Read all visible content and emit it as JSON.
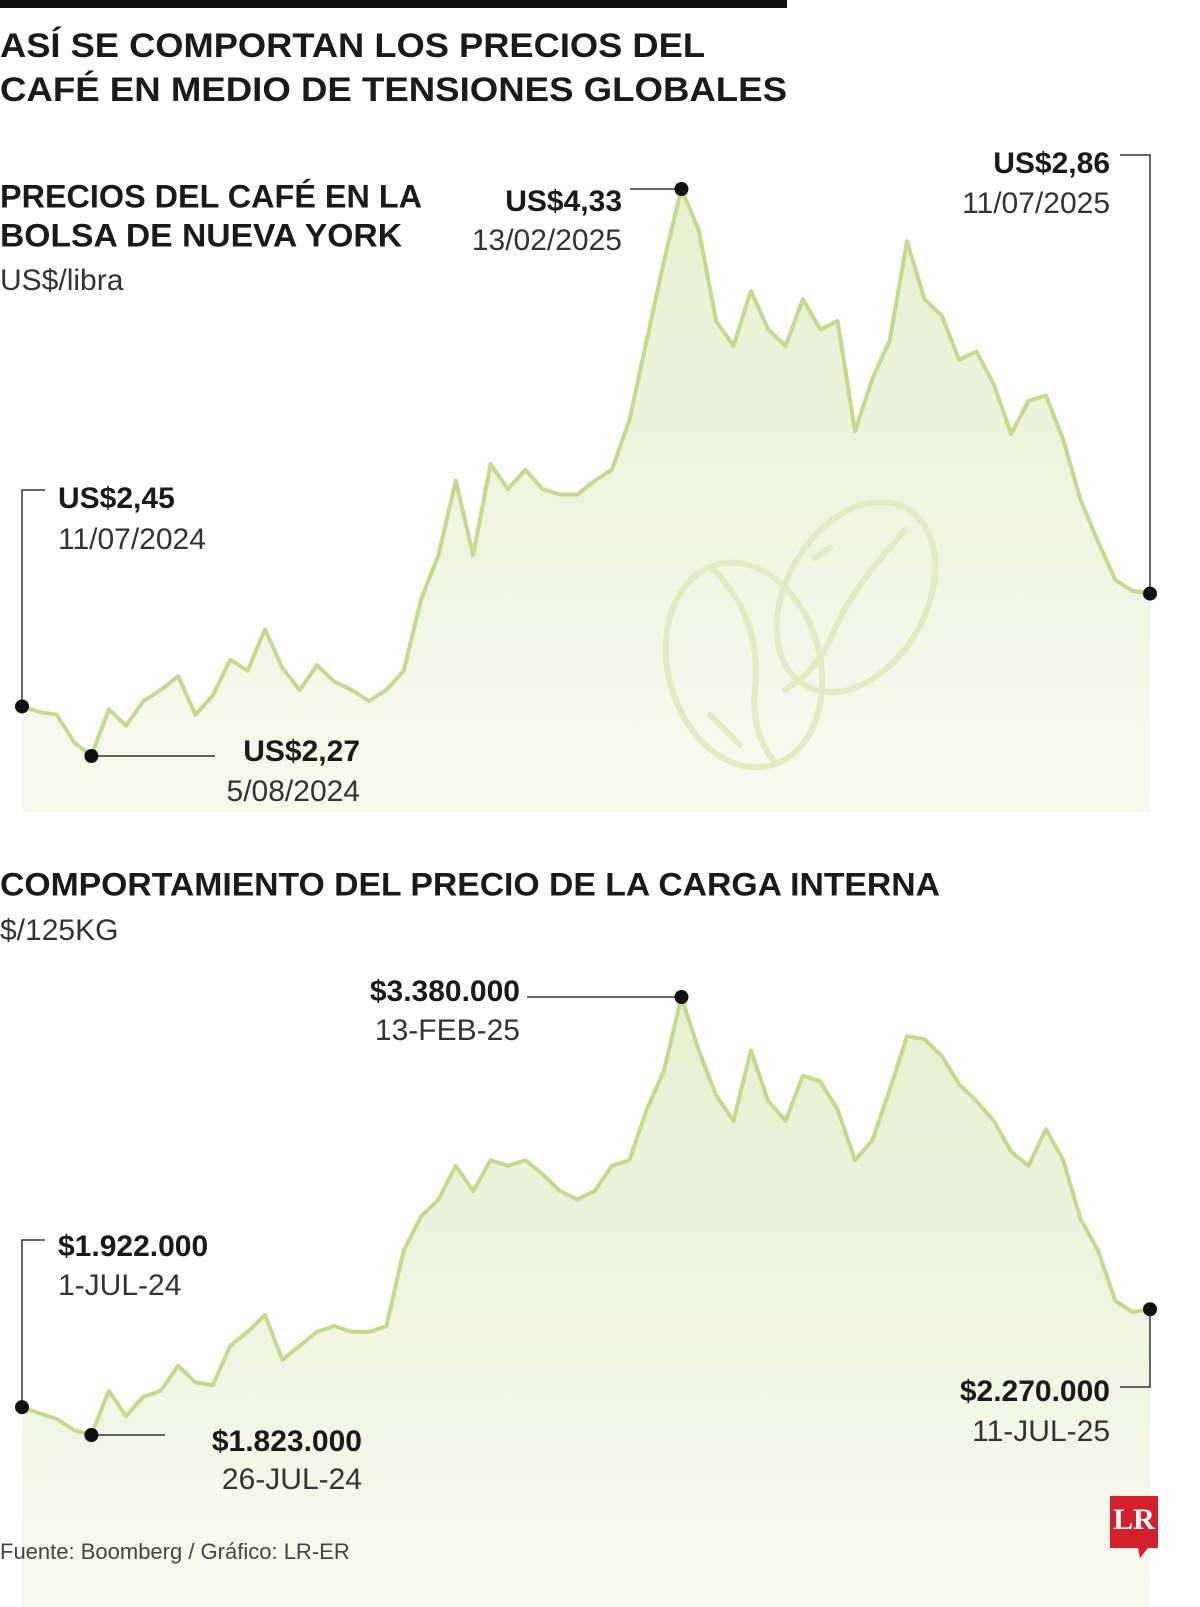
{
  "header": {
    "title": [
      "ASÍ SE COMPORTAN LOS PRECIOS DEL",
      "CAFÉ EN MEDIO DE TENSIONES GLOBALES"
    ]
  },
  "chart_data": [
    {
      "type": "line",
      "title": [
        "PRECIOS DEL CAFÉ EN LA",
        "BOLSA DE NUEVA YORK"
      ],
      "subtitle": "US$/libra",
      "color": "#c4d98c",
      "categories": [
        "11/07/2024",
        null,
        null,
        null,
        "5/08/2024",
        null,
        null,
        null,
        null,
        null,
        null,
        null,
        null,
        null,
        null,
        null,
        null,
        null,
        null,
        null,
        null,
        null,
        null,
        null,
        null,
        null,
        null,
        null,
        null,
        null,
        null,
        null,
        null,
        null,
        null,
        null,
        null,
        null,
        "13/02/2025",
        null,
        null,
        null,
        null,
        null,
        null,
        null,
        null,
        null,
        null,
        null,
        null,
        null,
        null,
        null,
        null,
        null,
        null,
        null,
        null,
        null,
        null,
        null,
        null,
        null,
        null,
        "11/07/2025"
      ],
      "values": [
        2.45,
        2.43,
        2.42,
        2.32,
        2.27,
        2.44,
        2.38,
        2.47,
        2.51,
        2.56,
        2.42,
        2.49,
        2.62,
        2.58,
        2.73,
        2.59,
        2.51,
        2.6,
        2.54,
        2.51,
        2.47,
        2.51,
        2.58,
        2.84,
        3.0,
        3.27,
        3.0,
        3.33,
        3.24,
        3.31,
        3.24,
        3.22,
        3.22,
        3.27,
        3.31,
        3.49,
        3.78,
        4.07,
        4.33,
        4.18,
        3.85,
        3.76,
        3.96,
        3.82,
        3.76,
        3.93,
        3.82,
        3.85,
        3.45,
        3.64,
        3.78,
        4.14,
        3.93,
        3.87,
        3.71,
        3.74,
        3.62,
        3.44,
        3.56,
        3.58,
        3.42,
        3.2,
        3.05,
        2.91,
        2.87,
        2.86
      ],
      "value_labels": [
        "US$2,45",
        null,
        null,
        null,
        "US$2,27",
        null,
        null,
        null,
        null,
        null,
        null,
        null,
        null,
        null,
        null,
        null,
        null,
        null,
        null,
        null,
        null,
        null,
        null,
        null,
        null,
        null,
        null,
        null,
        null,
        null,
        null,
        null,
        null,
        null,
        null,
        null,
        null,
        null,
        "US$4,33",
        null,
        null,
        null,
        null,
        null,
        null,
        null,
        null,
        null,
        null,
        null,
        null,
        null,
        null,
        null,
        null,
        null,
        null,
        null,
        null,
        null,
        null,
        null,
        null,
        null,
        null,
        "US$2,86"
      ]
    },
    {
      "type": "line",
      "title": [
        "COMPORTAMIENTO DEL PRECIO DE LA CARGA INTERNA"
      ],
      "subtitle": "$/125KG",
      "color": "#c4d98c",
      "categories": [
        "1-JUL-24",
        null,
        null,
        null,
        "26-JUL-24",
        null,
        null,
        null,
        null,
        null,
        null,
        null,
        null,
        null,
        null,
        null,
        null,
        null,
        null,
        null,
        null,
        null,
        null,
        null,
        null,
        null,
        null,
        null,
        null,
        null,
        null,
        null,
        null,
        null,
        null,
        null,
        null,
        null,
        "13-FEB-25",
        null,
        null,
        null,
        null,
        null,
        null,
        null,
        null,
        null,
        null,
        null,
        null,
        null,
        null,
        null,
        null,
        null,
        null,
        null,
        null,
        null,
        null,
        null,
        null,
        null,
        null,
        "11-JUL-25"
      ],
      "values": [
        1922000,
        1900000,
        1880000,
        1840000,
        1823000,
        1980000,
        1890000,
        1960000,
        1980000,
        2070000,
        2010000,
        2000000,
        2140000,
        2190000,
        2250000,
        2090000,
        2140000,
        2190000,
        2210000,
        2190000,
        2190000,
        2210000,
        2480000,
        2600000,
        2660000,
        2780000,
        2690000,
        2800000,
        2780000,
        2800000,
        2750000,
        2690000,
        2660000,
        2690000,
        2780000,
        2800000,
        2980000,
        3120000,
        3380000,
        3190000,
        3030000,
        2940000,
        3190000,
        3010000,
        2940000,
        3100000,
        3080000,
        2980000,
        2800000,
        2870000,
        3050000,
        3240000,
        3230000,
        3170000,
        3070000,
        3010000,
        2940000,
        2830000,
        2780000,
        2910000,
        2800000,
        2590000,
        2480000,
        2300000,
        2260000,
        2270000
      ],
      "value_labels": [
        "$1.922.000",
        null,
        null,
        null,
        "$1.823.000",
        null,
        null,
        null,
        null,
        null,
        null,
        null,
        null,
        null,
        null,
        null,
        null,
        null,
        null,
        null,
        null,
        null,
        null,
        null,
        null,
        null,
        null,
        null,
        null,
        null,
        null,
        null,
        null,
        null,
        null,
        null,
        null,
        null,
        "$3.380.000",
        null,
        null,
        null,
        null,
        null,
        null,
        null,
        null,
        null,
        null,
        null,
        null,
        null,
        null,
        null,
        null,
        null,
        null,
        null,
        null,
        null,
        null,
        null,
        null,
        null,
        null,
        "$2.270.000"
      ]
    }
  ],
  "footer": {
    "source": "Fuente: Boomberg / Gráfico: LR-ER",
    "logo": "LR"
  }
}
